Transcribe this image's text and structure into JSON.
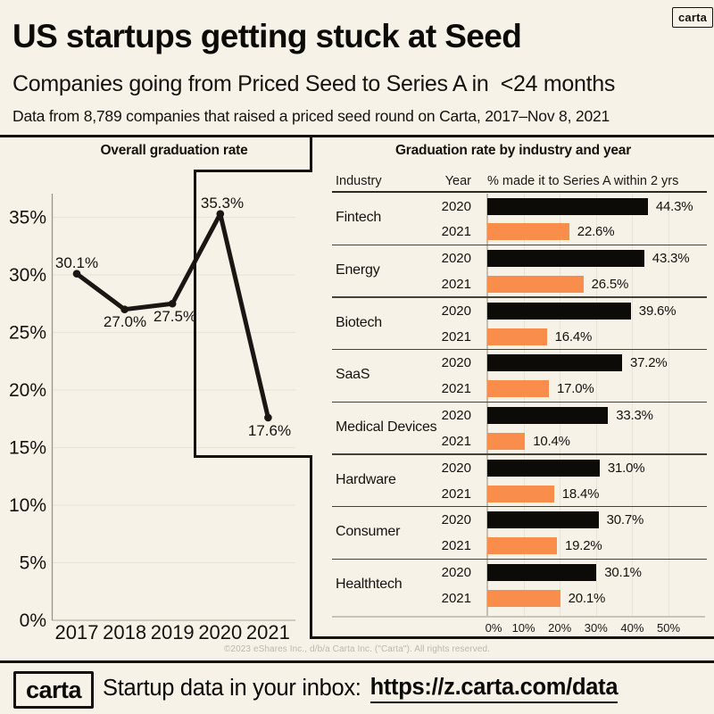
{
  "header": {
    "brand_badge": "carta",
    "title": "US startups getting stuck at Seed",
    "subtitle": "Companies going from Priced Seed to Series A in  <24 months",
    "note": "Data from 8,789 companies that raised a priced seed round on Carta, 2017–Nov 8, 2021"
  },
  "chart_data": [
    {
      "type": "line",
      "title": "Overall graduation rate",
      "x": [
        "2017",
        "2018",
        "2019",
        "2020",
        "2021"
      ],
      "values": [
        30.1,
        27.0,
        27.5,
        35.3,
        17.6
      ],
      "point_labels": [
        "30.1%",
        "27.0%",
        "27.5%",
        "35.3%",
        "17.6%"
      ],
      "ylim": [
        0,
        37
      ],
      "ytick_values": [
        35,
        30,
        25,
        20,
        15,
        10,
        5,
        0
      ],
      "ytick_labels": [
        "35%",
        "30%",
        "25%",
        "20%",
        "15%",
        "10%",
        "5%",
        "0%"
      ],
      "grid": true,
      "line_color": "#1a1613"
    },
    {
      "type": "bar",
      "title": "Graduation rate by industry and year",
      "columns": [
        "Industry",
        "Year",
        "% made it to Series A within 2 yrs"
      ],
      "categories": [
        "Fintech",
        "Energy",
        "Biotech",
        "SaaS",
        "Medical Devices",
        "Hardware",
        "Consumer",
        "Healthtech"
      ],
      "series": [
        {
          "name": "2020",
          "color": "#0d0b08",
          "values": [
            44.3,
            43.3,
            39.6,
            37.2,
            33.3,
            31.0,
            30.7,
            30.1
          ]
        },
        {
          "name": "2021",
          "color": "#f98e4c",
          "values": [
            22.6,
            26.5,
            16.4,
            17.0,
            10.4,
            18.4,
            19.2,
            20.1
          ]
        }
      ],
      "value_labels": [
        [
          "44.3%",
          "43.3%",
          "39.6%",
          "37.2%",
          "33.3%",
          "31.0%",
          "30.7%",
          "30.1%"
        ],
        [
          "22.6%",
          "26.5%",
          "16.4%",
          "17.0%",
          "10.4%",
          "18.4%",
          "19.2%",
          "20.1%"
        ]
      ],
      "xlim": [
        0,
        50
      ],
      "xtick_values": [
        0,
        10,
        20,
        30,
        40,
        50
      ],
      "xtick_labels": [
        "0%",
        "10%",
        "20%",
        "30%",
        "40%",
        "50%"
      ],
      "legend_position": "none",
      "grid": true
    }
  ],
  "footer": {
    "copyright": "©2023 eShares Inc., d/b/a Carta Inc. (\"Carta\"). All rights reserved.",
    "brand": "carta",
    "cta_text": "Startup data in your inbox:",
    "cta_link": "https://z.carta.com/data"
  },
  "colors": {
    "background": "#f7f2e8",
    "ink": "#15120e",
    "bar_2020": "#0d0b08",
    "bar_2021": "#f98e4c"
  }
}
